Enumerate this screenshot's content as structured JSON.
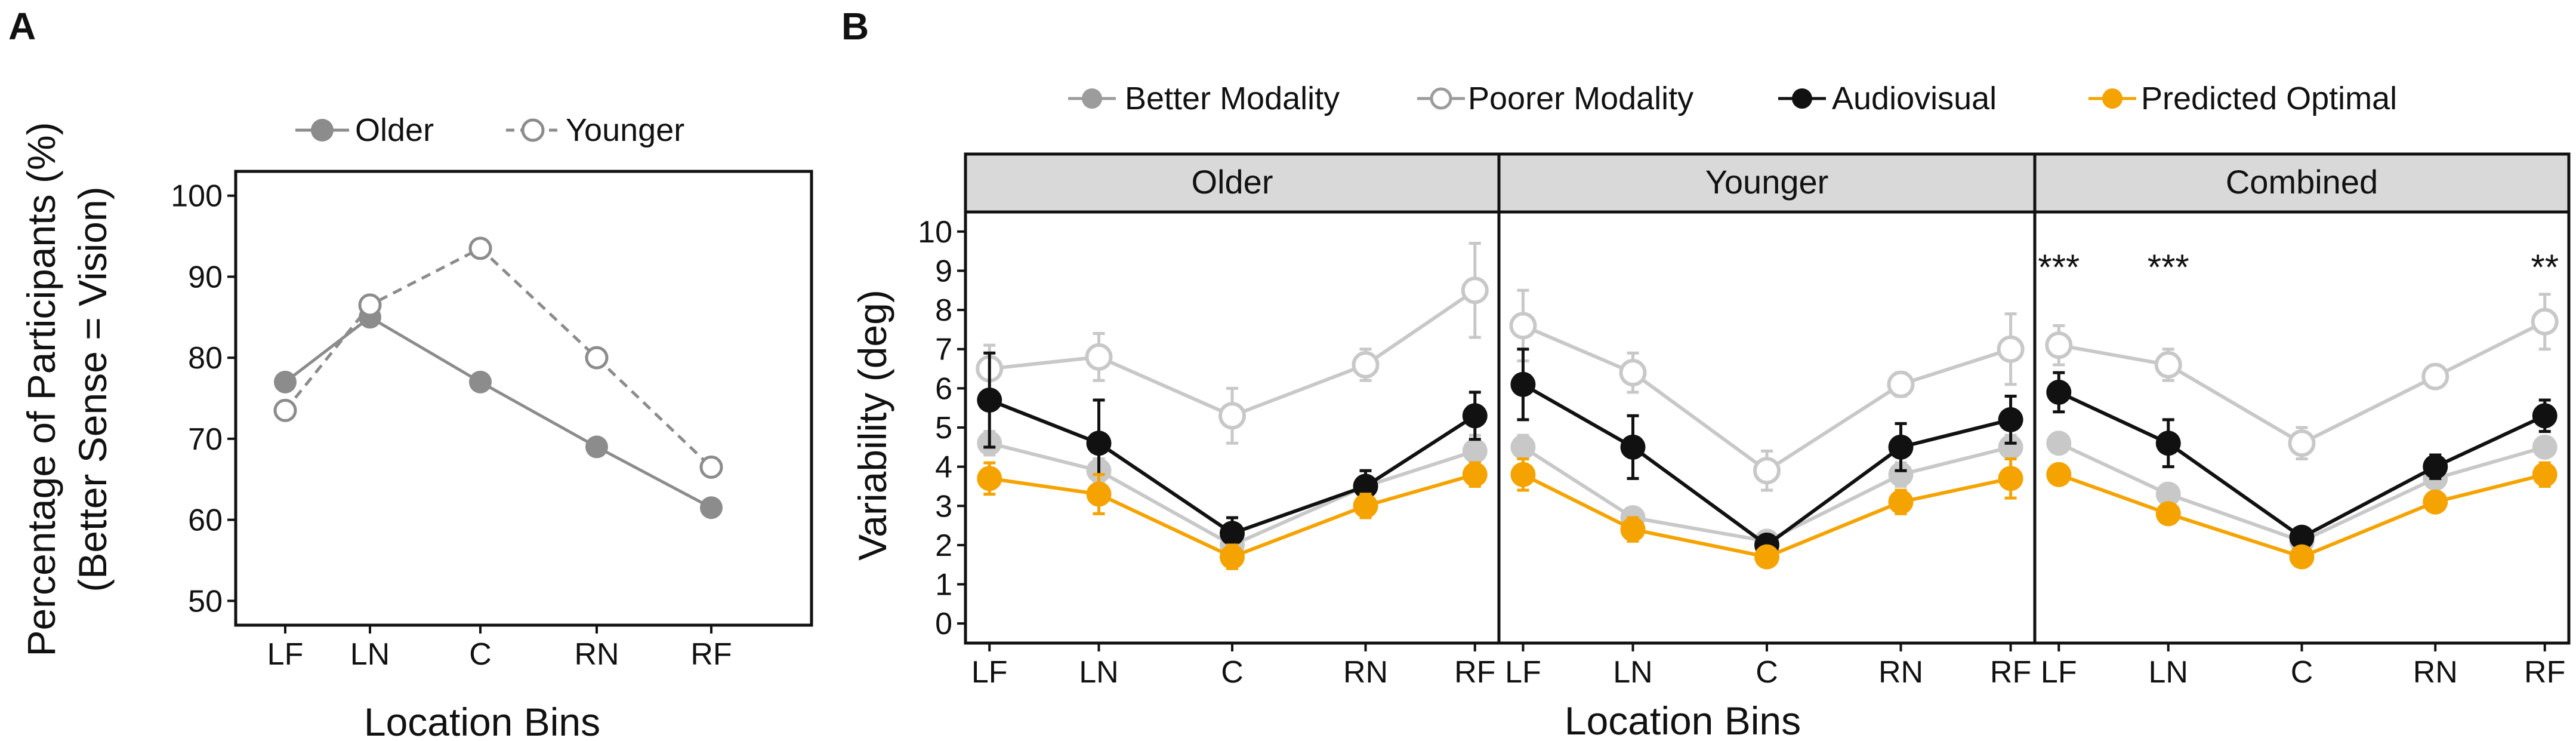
{
  "chart_data": [
    {
      "panel": "A",
      "type": "line",
      "xlabel": "Location Bins",
      "ylabel_line1": "Percentage of Participants (%)",
      "ylabel_line2": "(Better Sense = Vision)",
      "categories": [
        "LF",
        "LN",
        "C",
        "RN",
        "RF"
      ],
      "ylim": [
        47,
        103
      ],
      "yticks": [
        50,
        60,
        70,
        80,
        90,
        100
      ],
      "series": [
        {
          "name": "Older",
          "marker": "filled",
          "line": "solid",
          "color": "#8c8c8c",
          "values": [
            77,
            85,
            77,
            69,
            61.5
          ]
        },
        {
          "name": "Younger",
          "marker": "open",
          "line": "dashed",
          "color": "#8c8c8c",
          "values": [
            73.5,
            86.5,
            93.5,
            80,
            66.5
          ]
        }
      ]
    },
    {
      "panel": "B",
      "type": "line",
      "xlabel": "Location Bins",
      "ylabel": "Variability (deg)",
      "categories": [
        "LF",
        "LN",
        "C",
        "RN",
        "RF"
      ],
      "ylim": [
        -0.5,
        10.5
      ],
      "yticks": [
        0,
        1,
        2,
        3,
        4,
        5,
        6,
        7,
        8,
        9,
        10
      ],
      "legend": [
        {
          "name": "Better Modality",
          "marker": "filled",
          "color": "#9c9c9c"
        },
        {
          "name": "Poorer Modality",
          "marker": "open",
          "color": "#9c9c9c"
        },
        {
          "name": "Audiovisual",
          "marker": "filled",
          "color": "#111111"
        },
        {
          "name": "Predicted Optimal",
          "marker": "filled",
          "color": "#f5a300"
        }
      ],
      "facets": [
        {
          "title": "Older",
          "significance": [
            "",
            "",
            "",
            "",
            ""
          ],
          "series": [
            {
              "name": "Poorer Modality",
              "color": "#c8c8c8",
              "open": true,
              "values": [
                6.5,
                6.8,
                5.3,
                6.6,
                8.5
              ],
              "errors": [
                0.6,
                0.6,
                0.7,
                0.4,
                1.2
              ]
            },
            {
              "name": "Better Modality",
              "color": "#c8c8c8",
              "open": false,
              "values": [
                4.6,
                3.9,
                2.0,
                3.5,
                4.4
              ],
              "errors": [
                0.3,
                0.3,
                0.2,
                0.4,
                0.4
              ]
            },
            {
              "name": "Audiovisual",
              "color": "#111111",
              "open": false,
              "values": [
                5.7,
                4.6,
                2.3,
                3.5,
                5.3
              ],
              "errors": [
                1.2,
                1.1,
                0.4,
                0.4,
                0.6
              ]
            },
            {
              "name": "Predicted Optimal",
              "color": "#f5a300",
              "open": false,
              "values": [
                3.7,
                3.3,
                1.7,
                3.0,
                3.8
              ],
              "errors": [
                0.4,
                0.5,
                0.3,
                0.3,
                0.3
              ]
            }
          ]
        },
        {
          "title": "Younger",
          "significance": [
            "",
            "",
            "",
            "",
            ""
          ],
          "series": [
            {
              "name": "Poorer Modality",
              "color": "#c8c8c8",
              "open": true,
              "values": [
                7.6,
                6.4,
                3.9,
                6.1,
                7.0
              ],
              "errors": [
                0.9,
                0.5,
                0.5,
                0.3,
                0.9
              ]
            },
            {
              "name": "Better Modality",
              "color": "#c8c8c8",
              "open": false,
              "values": [
                4.5,
                2.7,
                2.1,
                3.8,
                4.5
              ],
              "errors": [
                0.3,
                0.2,
                0.2,
                0.3,
                0.3
              ]
            },
            {
              "name": "Audiovisual",
              "color": "#111111",
              "open": false,
              "values": [
                6.1,
                4.5,
                2.0,
                4.5,
                5.2
              ],
              "errors": [
                0.9,
                0.8,
                0.2,
                0.6,
                0.6
              ]
            },
            {
              "name": "Predicted Optimal",
              "color": "#f5a300",
              "open": false,
              "values": [
                3.8,
                2.4,
                1.7,
                3.1,
                3.7
              ],
              "errors": [
                0.4,
                0.3,
                0.2,
                0.3,
                0.5
              ]
            }
          ]
        },
        {
          "title": "Combined",
          "significance": [
            "***",
            "***",
            "",
            "",
            "**"
          ],
          "series": [
            {
              "name": "Poorer Modality",
              "color": "#c8c8c8",
              "open": true,
              "values": [
                7.1,
                6.6,
                4.6,
                6.3,
                7.7
              ],
              "errors": [
                0.5,
                0.4,
                0.4,
                0.2,
                0.7
              ]
            },
            {
              "name": "Better Modality",
              "color": "#c8c8c8",
              "open": false,
              "values": [
                4.6,
                3.3,
                2.1,
                3.7,
                4.5
              ],
              "errors": [
                0.2,
                0.2,
                0.2,
                0.2,
                0.2
              ]
            },
            {
              "name": "Audiovisual",
              "color": "#111111",
              "open": false,
              "values": [
                5.9,
                4.6,
                2.2,
                4.0,
                5.3
              ],
              "errors": [
                0.5,
                0.6,
                0.2,
                0.3,
                0.4
              ]
            },
            {
              "name": "Predicted Optimal",
              "color": "#f5a300",
              "open": false,
              "values": [
                3.8,
                2.8,
                1.7,
                3.1,
                3.8
              ],
              "errors": [
                0.2,
                0.2,
                0.2,
                0.2,
                0.3
              ]
            }
          ]
        }
      ]
    }
  ],
  "panel_labels": {
    "a": "A",
    "b": "B"
  },
  "legend_a": {
    "older": "Older",
    "younger": "Younger"
  },
  "legend_b": {
    "better": "Better Modality",
    "poorer": "Poorer Modality",
    "audiovisual": "Audiovisual",
    "optimal": "Predicted Optimal"
  },
  "axis_titles": {
    "a_x": "Location Bins",
    "a_y1": "Percentage of Participants (%)",
    "a_y2": "(Better Sense = Vision)",
    "b_x": "Location Bins",
    "b_y": "Variability (deg)"
  }
}
